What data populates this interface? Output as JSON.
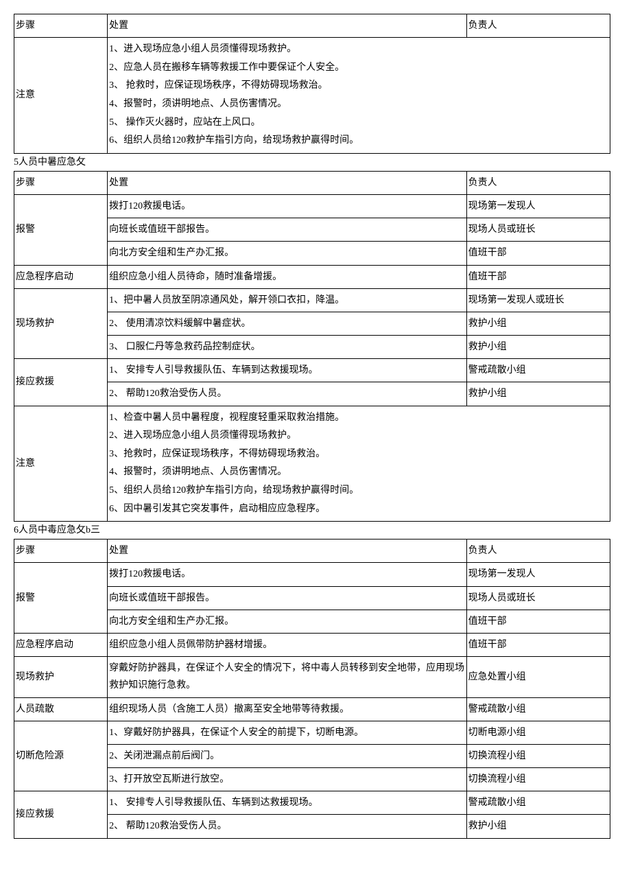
{
  "cols": {
    "step": "步骤",
    "action": "处置",
    "person": "负责人"
  },
  "section4_tail": {
    "notice_label": "注意",
    "notice_lines": [
      "1、进入现场应急小组人员须懂得现场救护。",
      "2、应急人员在搬移车辆等救援工作中要保证个人安全。",
      "3、 抢救时，应保证现场秩序，不得妨碍现场救治。",
      "4、报警时，须讲明地点、人员伤害情况。",
      "5、 操作灭火器时，应站在上风口。",
      "6、组织人员给120救护车指引方向，给现场救护赢得时间。"
    ]
  },
  "section5": {
    "title": "5人员中暑应急攵",
    "rows": [
      {
        "step": "报警",
        "lines": [
          {
            "action": "拨打120救援电话。",
            "person": "现场第一发现人"
          },
          {
            "action": "向班长或值班干部报告。",
            "person": "现场人员或班长"
          },
          {
            "action": "向北方安全组和生产办汇报。",
            "person": "值班干部"
          }
        ]
      },
      {
        "step": "应急程序启动",
        "lines": [
          {
            "action": "组织应急小组人员待命，随时准备增援。",
            "person": "值班干部"
          }
        ]
      },
      {
        "step": "现场救护",
        "lines": [
          {
            "action": "1、把中暑人员放至阴凉通风处，解开领口衣扣，降温。",
            "person": "现场第一发现人或班长"
          },
          {
            "action": "2、 使用清凉饮料缓解中暑症状。",
            "person": "救护小组"
          },
          {
            "action": "3、 口服仁丹等急救药品控制症状。",
            "person": "救护小组"
          }
        ]
      },
      {
        "step": "接应救援",
        "lines": [
          {
            "action": "1、 安排专人引导救援队伍、车辆到达救援现场。",
            "person": "警戒疏散小组"
          },
          {
            "action": "2、 帮助120救治受伤人员。",
            "person": "救护小组"
          }
        ]
      }
    ],
    "notice_label": "注意",
    "notice_lines": [
      "1、检查中暑人员中暑程度，视程度轻重采取救治措施。",
      "2、进入现场应急小组人员须懂得现场救护。",
      "3、抢救时，应保证现场秩序，不得妨碍现场救治。",
      "4、报警时，须讲明地点、人员伤害情况。",
      "5、组织人员给120救护车指引方向，给现场救护赢得时间。",
      "6、因中暑引发其它突发事件，启动相应应急程序。"
    ]
  },
  "section6": {
    "title": "6人员中毒应急攵b三",
    "rows": [
      {
        "step": "报警",
        "lines": [
          {
            "action": "拨打120救援电话。",
            "person": "现场第一发现人"
          },
          {
            "action": "向班长或值班干部报告。",
            "person": "现场人员或班长"
          },
          {
            "action": "向北方安全组和生产办汇报。",
            "person": "值班干部"
          }
        ]
      },
      {
        "step": "应急程序启动",
        "lines": [
          {
            "action": "组织应急小组人员佩带防护器材增援。",
            "person": "值班干部"
          }
        ]
      },
      {
        "step": "现场救护",
        "lines": [
          {
            "action": "穿戴好防护器具，在保证个人安全的情况下，将中毒人员转移到安全地带，应用现场救护知识施行急救。",
            "person": "应急处置小组"
          }
        ]
      },
      {
        "step": "人员疏散",
        "lines": [
          {
            "action": "组织现场人员（含施工人员）撤离至安全地带等待救援。",
            "person": "警戒疏散小组"
          }
        ]
      },
      {
        "step": "切断危险源",
        "lines": [
          {
            "action": "1、穿戴好防护器具，在保证个人安全的前提下，切断电源。",
            "person": "切断电源小组"
          },
          {
            "action": "2、关闭泄漏点前后阀门。",
            "person": "切换流程小组"
          },
          {
            "action": "3、打开放空瓦斯进行放空。",
            "person": "切换流程小组"
          }
        ]
      },
      {
        "step": "接应救援",
        "lines": [
          {
            "action": "1、 安排专人引导救援队伍、车辆到达救援现场。",
            "person": "警戒疏散小组"
          },
          {
            "action": "2、 帮助120救治受伤人员。",
            "person": "救护小组"
          }
        ]
      }
    ]
  }
}
